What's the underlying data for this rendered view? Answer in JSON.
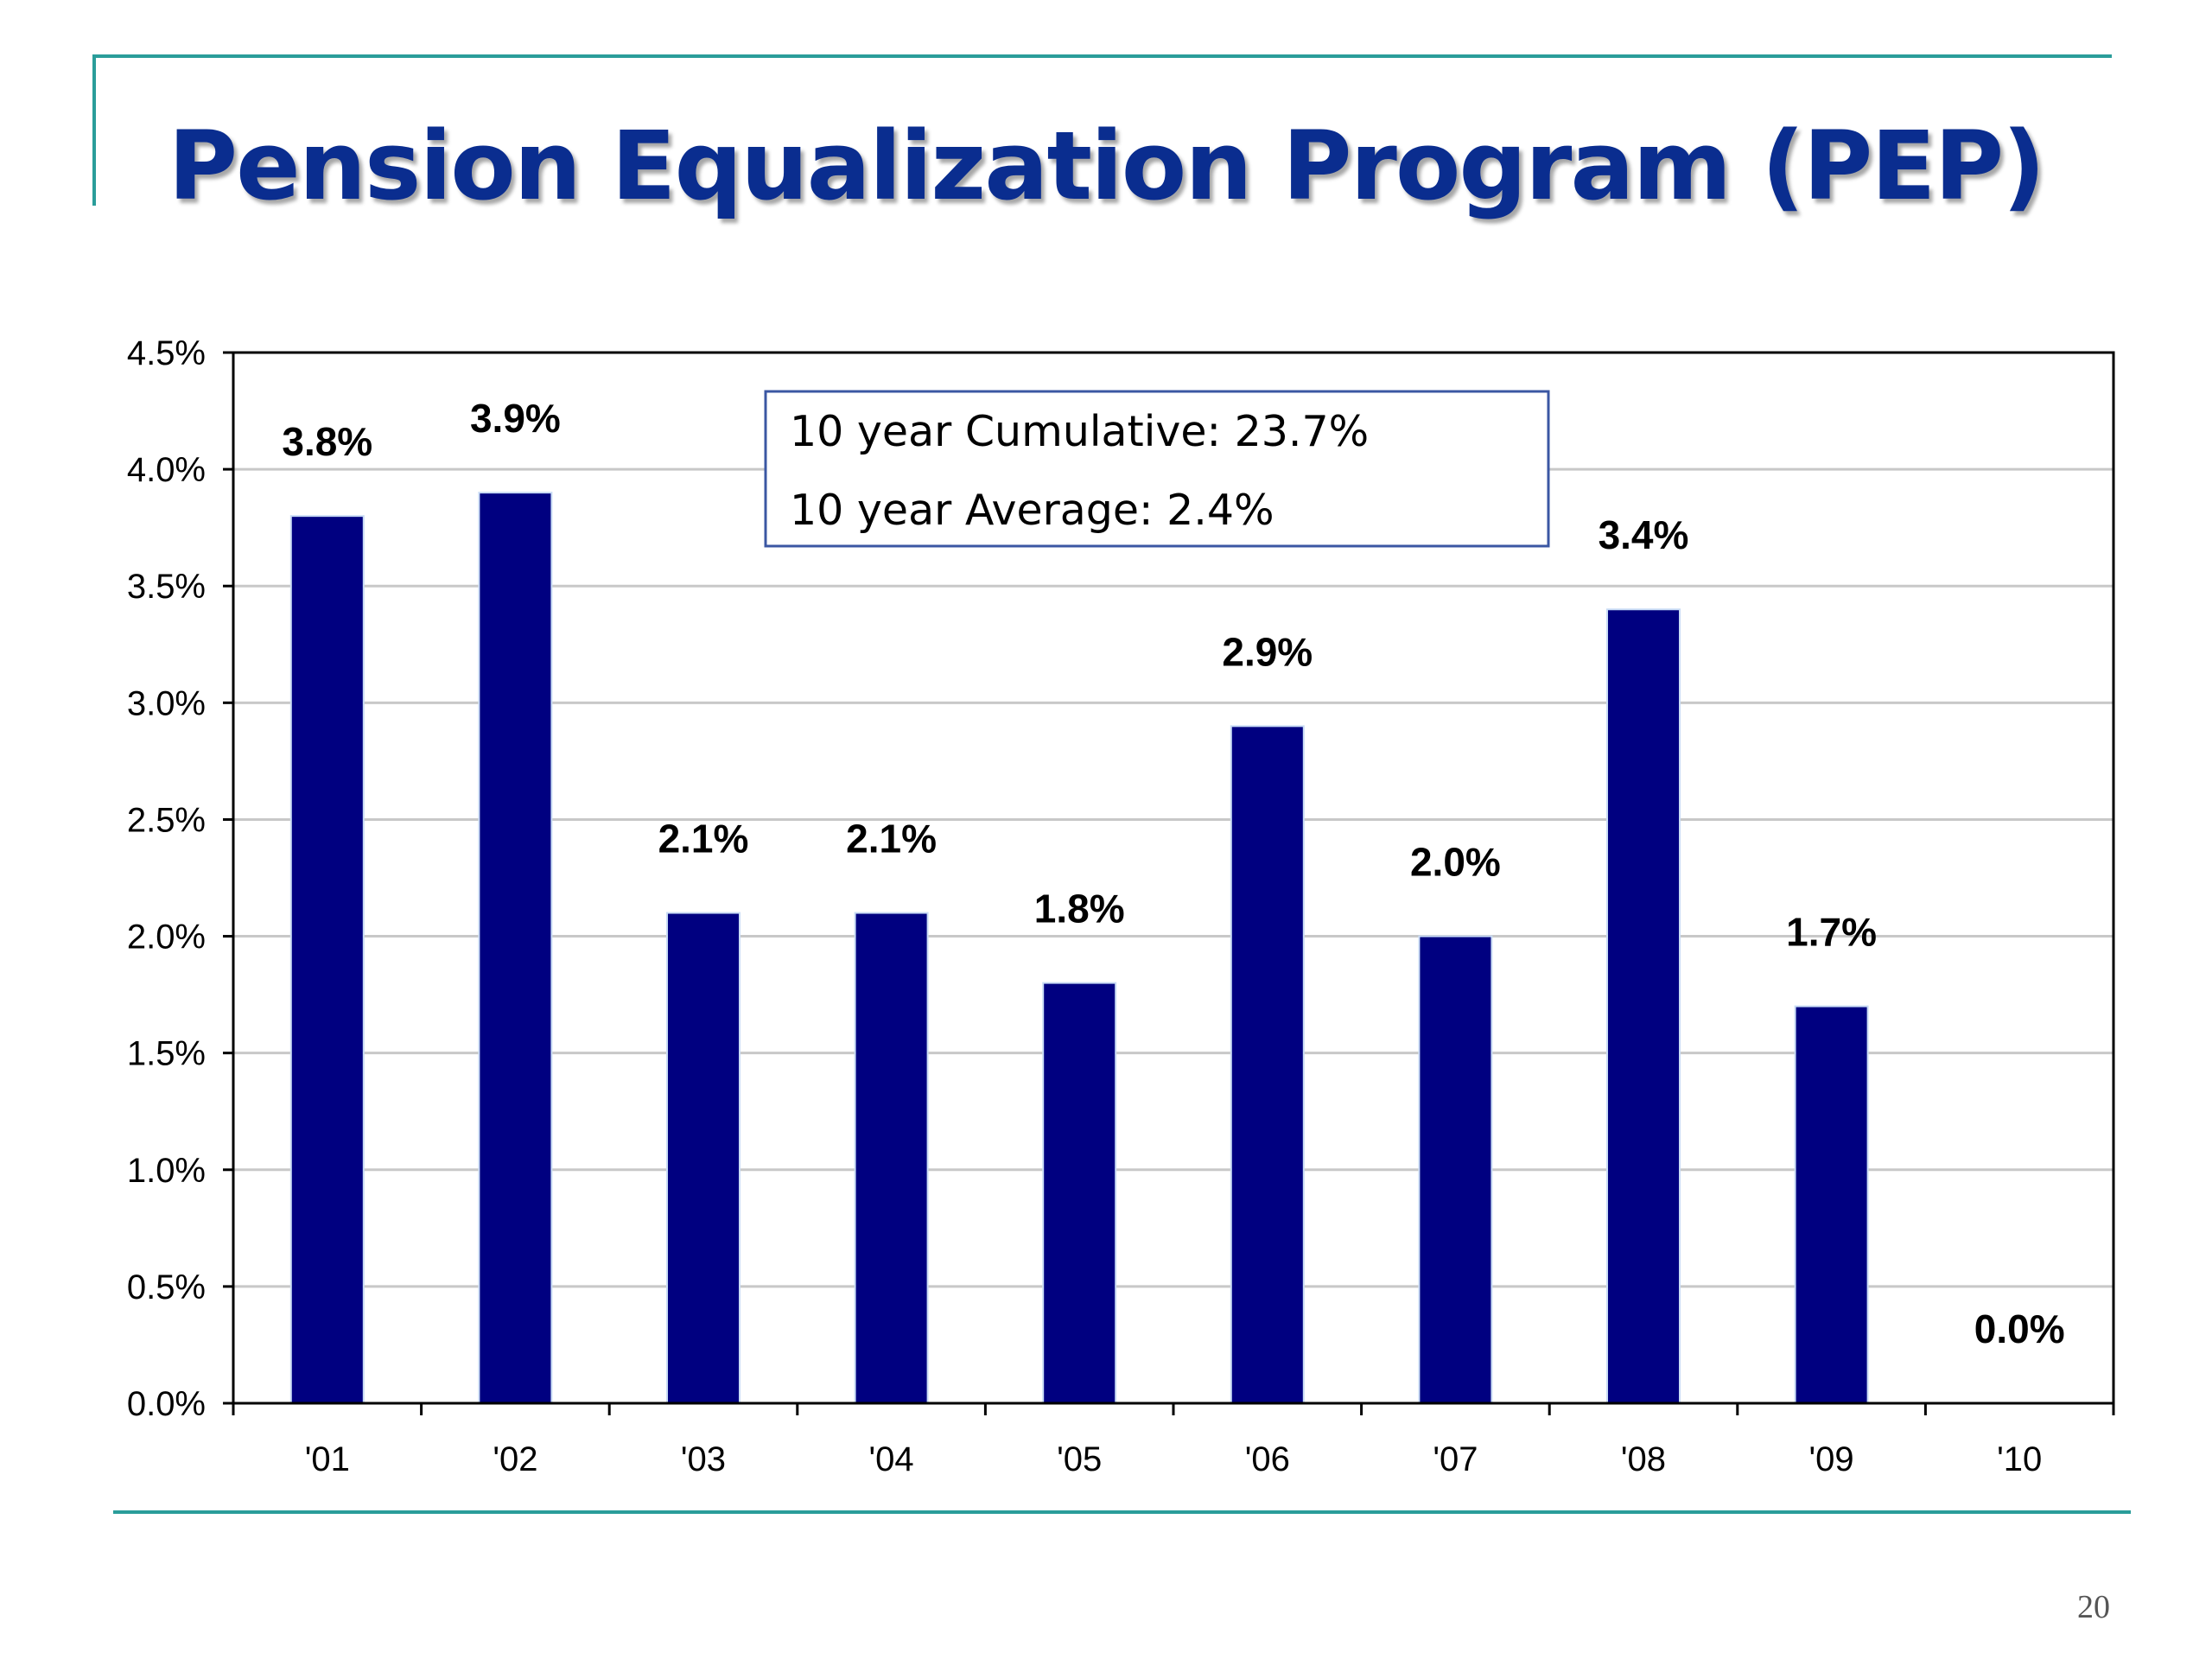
{
  "slide": {
    "title": "Pension Equalization Program (PEP)",
    "page_number": "20"
  },
  "colors": {
    "bar": "#000080",
    "accent_line": "#2a9d9a",
    "title": "#0a2d8f",
    "note_border": "#3b57a3",
    "gridline": "#c8c8c8"
  },
  "note": {
    "cumulative": "10 year Cumulative: 23.7%",
    "average": "10 year Average: 2.4%"
  },
  "chart_data": {
    "type": "bar",
    "categories": [
      "'01",
      "'02",
      "'03",
      "'04",
      "'05",
      "'06",
      "'07",
      "'08",
      "'09",
      "'10"
    ],
    "values": [
      3.8,
      3.9,
      2.1,
      2.1,
      1.8,
      2.9,
      2.0,
      3.4,
      1.7,
      0.0
    ],
    "data_labels": [
      "3.8%",
      "3.9%",
      "2.1%",
      "2.1%",
      "1.8%",
      "2.9%",
      "2.0%",
      "3.4%",
      "1.7%",
      "0.0%"
    ],
    "y_ticks": [
      "0.0%",
      "0.5%",
      "1.0%",
      "1.5%",
      "2.0%",
      "2.5%",
      "3.0%",
      "3.5%",
      "4.0%",
      "4.5%"
    ],
    "ylim": [
      0,
      4.5
    ],
    "grid": true,
    "title": "",
    "xlabel": "",
    "ylabel": ""
  }
}
